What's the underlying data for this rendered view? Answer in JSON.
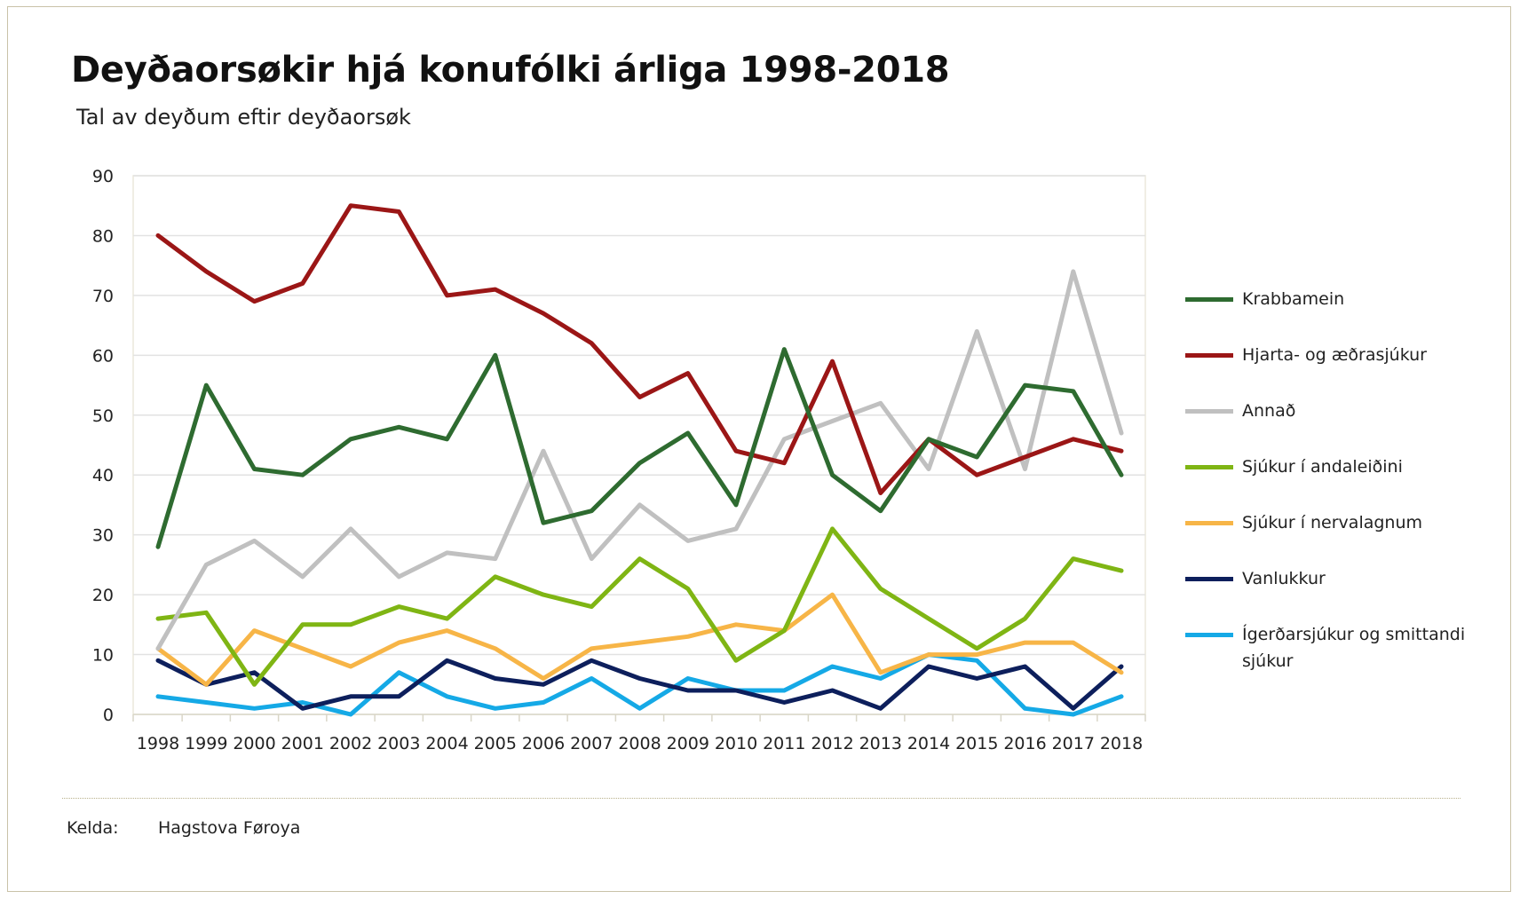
{
  "title": "Deyðaorsøkir hjá konufólki árliga 1998-2018",
  "subtitle": "Tal av deyðum eftir deyðaorsøk",
  "source": {
    "label": "Kelda:",
    "value": "Hagstova Føroya"
  },
  "chart_data": {
    "type": "line",
    "x": [
      "1998",
      "1999",
      "2000",
      "2001",
      "2002",
      "2003",
      "2004",
      "2005",
      "2006",
      "2007",
      "2008",
      "2009",
      "2010",
      "2011",
      "2012",
      "2013",
      "2014",
      "2015",
      "2016",
      "2017",
      "2018"
    ],
    "ylim": [
      0,
      90
    ],
    "yticks": [
      0,
      10,
      20,
      30,
      40,
      50,
      60,
      70,
      80,
      90
    ],
    "grid": true,
    "legend": "right",
    "series": [
      {
        "name": "Krabbamein",
        "color": "#2e6b30",
        "values": [
          28,
          55,
          41,
          40,
          46,
          48,
          46,
          60,
          32,
          34,
          42,
          47,
          35,
          61,
          40,
          34,
          46,
          43,
          55,
          54,
          40
        ]
      },
      {
        "name": "Hjarta- og æðrasjúkur",
        "color": "#9b1616",
        "values": [
          80,
          74,
          69,
          72,
          85,
          84,
          70,
          71,
          67,
          62,
          53,
          57,
          44,
          42,
          59,
          37,
          46,
          40,
          43,
          46,
          44
        ]
      },
      {
        "name": "Annað",
        "color": "#c0c0c0",
        "values": [
          11,
          25,
          29,
          23,
          31,
          23,
          27,
          26,
          44,
          26,
          35,
          29,
          31,
          46,
          49,
          52,
          41,
          64,
          41,
          74,
          47
        ]
      },
      {
        "name": "Sjúkur í andaleiðini",
        "color": "#7fb514",
        "values": [
          16,
          17,
          5,
          15,
          15,
          18,
          16,
          23,
          20,
          18,
          26,
          21,
          9,
          14,
          31,
          21,
          16,
          11,
          16,
          26,
          24
        ]
      },
      {
        "name": "Sjúkur í nervalagnum",
        "color": "#f7b547",
        "values": [
          11,
          5,
          14,
          11,
          8,
          12,
          14,
          11,
          6,
          11,
          12,
          13,
          15,
          14,
          20,
          7,
          10,
          10,
          12,
          12,
          7
        ]
      },
      {
        "name": "Vanlukkur",
        "color": "#0d1f5c",
        "values": [
          9,
          5,
          7,
          1,
          3,
          3,
          9,
          6,
          5,
          9,
          6,
          4,
          4,
          2,
          4,
          1,
          8,
          6,
          8,
          1,
          8
        ]
      },
      {
        "name": "Ígerðarsjúkur og smittandi sjúkur",
        "color": "#15a9e6",
        "values": [
          3,
          2,
          1,
          2,
          0,
          7,
          3,
          1,
          2,
          6,
          1,
          6,
          4,
          4,
          8,
          6,
          10,
          9,
          1,
          0,
          3
        ]
      }
    ]
  }
}
